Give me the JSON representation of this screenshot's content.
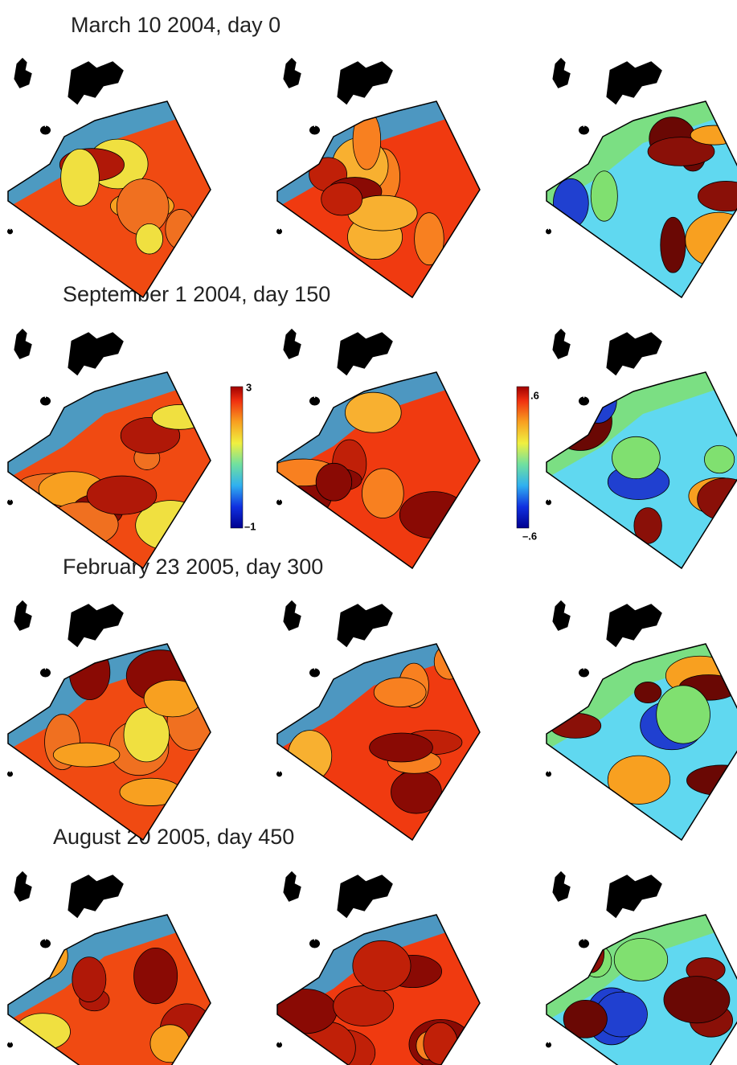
{
  "rows": [
    {
      "title": "March 10 2004, day 0"
    },
    {
      "title": "September  1 2004, day 150"
    },
    {
      "title": "February 23 2005, day 300"
    },
    {
      "title": "August 20 2005, day 450"
    }
  ],
  "colorbars": [
    {
      "top": "3",
      "bottom": "–1"
    },
    {
      "top": ".6",
      "bottom": "–.6"
    }
  ]
}
